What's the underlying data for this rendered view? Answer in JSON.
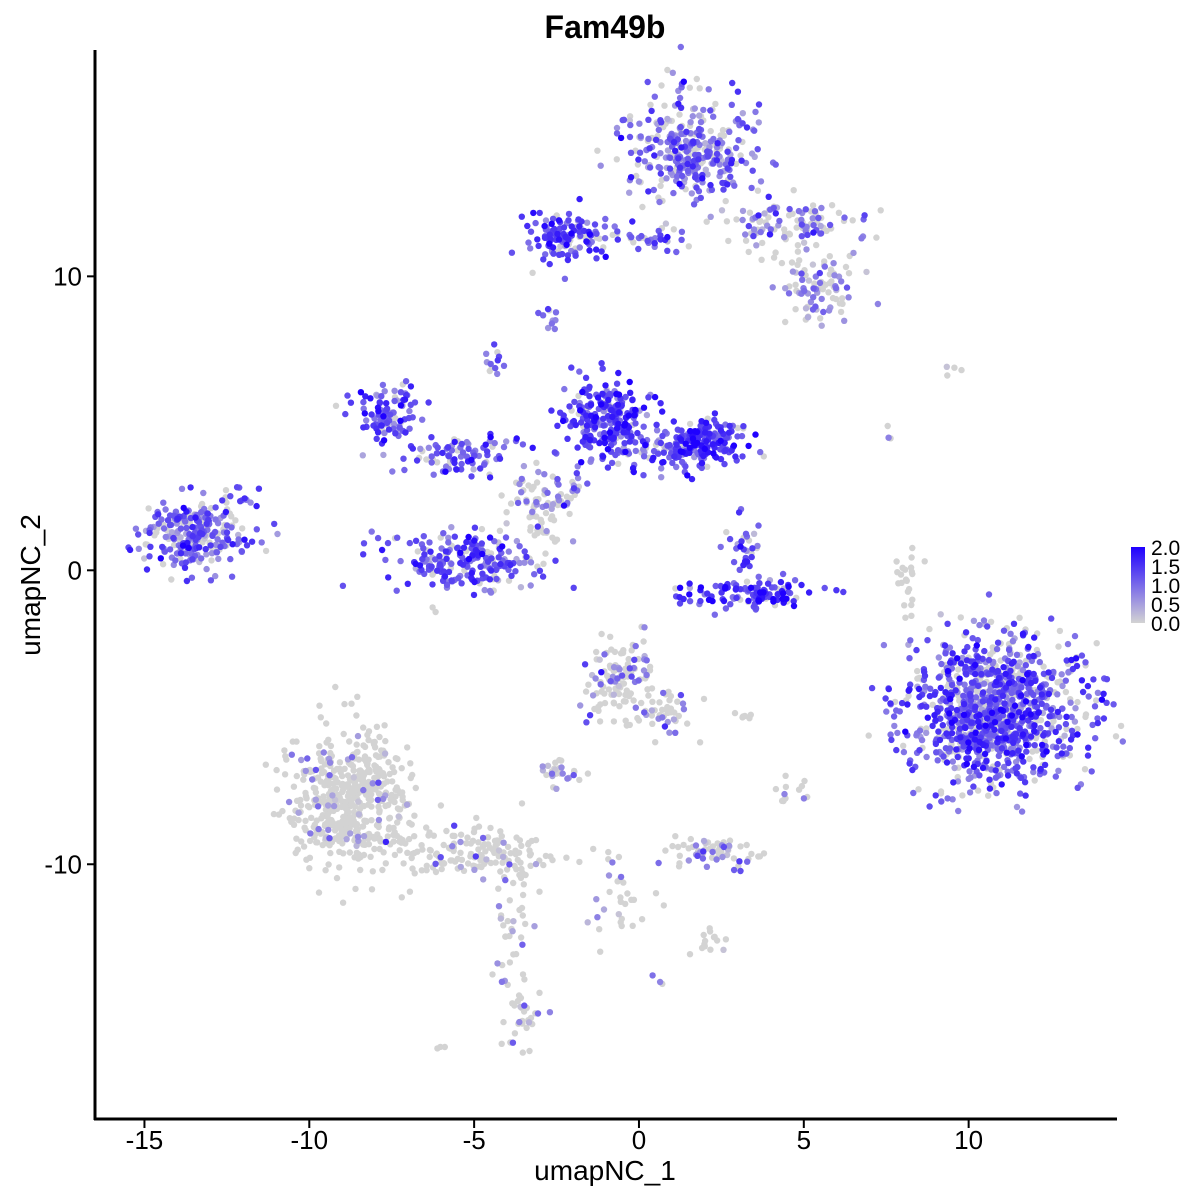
{
  "chart_data": {
    "type": "scatter",
    "title": "Fam49b",
    "xlabel": "umapNC_1",
    "ylabel": "umapNC_2",
    "xlim": [
      -16.5,
      14.5
    ],
    "ylim": [
      -18.7,
      17.7
    ],
    "xticks": [
      -15,
      -10,
      -5,
      0,
      5,
      10
    ],
    "xtick_labels": [
      "-15",
      "-10",
      "-5",
      "0",
      "5",
      "10"
    ],
    "yticks": [
      -10,
      0,
      10
    ],
    "ytick_labels": [
      "-10",
      "0",
      "10"
    ],
    "grid": false,
    "legend": {
      "placement": "right",
      "type": "colorbar",
      "range": [
        0,
        2.0
      ],
      "tick_values": [
        2.0,
        1.5,
        1.0,
        0.5,
        0.0
      ],
      "tick_labels": [
        "2.0",
        "1.5",
        "1.0",
        "0.5",
        "0.0"
      ],
      "low_color": "#d3d3d3",
      "high_color": "#1f00ff"
    },
    "clusters": [
      {
        "cx": -13.5,
        "cy": 1.2,
        "sx": 0.75,
        "sy": 0.6,
        "n": 260,
        "expr_prob": 0.75,
        "expr_mean": 1.1
      },
      {
        "cx": -12.0,
        "cy": 2.3,
        "sx": 0.3,
        "sy": 0.3,
        "n": 12,
        "expr_prob": 0.9,
        "expr_mean": 1.0
      },
      {
        "cx": 1.5,
        "cy": 14.3,
        "sx": 0.95,
        "sy": 0.9,
        "n": 340,
        "expr_prob": 0.7,
        "expr_mean": 1.0
      },
      {
        "cx": 4.5,
        "cy": 11.8,
        "sx": 1.1,
        "sy": 0.5,
        "n": 110,
        "expr_prob": 0.55,
        "expr_mean": 0.9
      },
      {
        "cx": 5.5,
        "cy": 9.5,
        "sx": 0.6,
        "sy": 0.6,
        "n": 90,
        "expr_prob": 0.55,
        "expr_mean": 0.8
      },
      {
        "cx": -2.2,
        "cy": 11.3,
        "sx": 0.6,
        "sy": 0.4,
        "n": 120,
        "expr_prob": 0.85,
        "expr_mean": 1.3
      },
      {
        "cx": -0.2,
        "cy": 11.3,
        "sx": 1.2,
        "sy": 0.18,
        "n": 45,
        "expr_prob": 0.8,
        "expr_mean": 1.1
      },
      {
        "cx": -2.7,
        "cy": 8.6,
        "sx": 0.2,
        "sy": 0.2,
        "n": 10,
        "expr_prob": 0.9,
        "expr_mean": 1.0
      },
      {
        "cx": -4.4,
        "cy": 7.2,
        "sx": 0.2,
        "sy": 0.3,
        "n": 12,
        "expr_prob": 0.6,
        "expr_mean": 0.9
      },
      {
        "cx": -1.0,
        "cy": 5.3,
        "sx": 0.6,
        "sy": 0.6,
        "n": 220,
        "expr_prob": 0.92,
        "expr_mean": 1.4
      },
      {
        "cx": 1.9,
        "cy": 4.4,
        "sx": 0.6,
        "sy": 0.4,
        "n": 180,
        "expr_prob": 0.9,
        "expr_mean": 1.4
      },
      {
        "cx": 0.0,
        "cy": 4.0,
        "sx": 1.2,
        "sy": 0.3,
        "n": 90,
        "expr_prob": 0.85,
        "expr_mean": 1.2
      },
      {
        "cx": -7.6,
        "cy": 5.3,
        "sx": 0.5,
        "sy": 0.5,
        "n": 100,
        "expr_prob": 0.85,
        "expr_mean": 1.2
      },
      {
        "cx": -5.4,
        "cy": 3.9,
        "sx": 0.9,
        "sy": 0.35,
        "n": 90,
        "expr_prob": 0.85,
        "expr_mean": 1.2
      },
      {
        "cx": -2.6,
        "cy": 2.6,
        "sx": 0.6,
        "sy": 0.5,
        "n": 60,
        "expr_prob": 0.6,
        "expr_mean": 1.0
      },
      {
        "cx": -5.3,
        "cy": 0.3,
        "sx": 1.1,
        "sy": 0.5,
        "n": 220,
        "expr_prob": 0.85,
        "expr_mean": 1.2
      },
      {
        "cx": 3.3,
        "cy": -0.8,
        "sx": 1.1,
        "sy": 0.25,
        "n": 120,
        "expr_prob": 0.9,
        "expr_mean": 1.5
      },
      {
        "cx": 3.2,
        "cy": 0.8,
        "sx": 0.3,
        "sy": 0.5,
        "n": 30,
        "expr_prob": 0.85,
        "expr_mean": 1.2
      },
      {
        "cx": 10.8,
        "cy": -4.8,
        "sx": 1.3,
        "sy": 1.2,
        "n": 1100,
        "expr_prob": 0.75,
        "expr_mean": 1.2
      },
      {
        "cx": 8.1,
        "cy": -0.3,
        "sx": 0.15,
        "sy": 0.8,
        "n": 22,
        "expr_prob": 0.05,
        "expr_mean": 0.4
      },
      {
        "cx": -0.6,
        "cy": -3.8,
        "sx": 0.6,
        "sy": 0.6,
        "n": 130,
        "expr_prob": 0.3,
        "expr_mean": 0.8
      },
      {
        "cx": 0.9,
        "cy": -4.8,
        "sx": 0.5,
        "sy": 0.4,
        "n": 40,
        "expr_prob": 0.3,
        "expr_mean": 0.8
      },
      {
        "cx": -8.8,
        "cy": -7.8,
        "sx": 0.9,
        "sy": 1.2,
        "n": 520,
        "expr_prob": 0.08,
        "expr_mean": 0.7
      },
      {
        "cx": -5.3,
        "cy": -9.6,
        "sx": 1.2,
        "sy": 0.5,
        "n": 150,
        "expr_prob": 0.08,
        "expr_mean": 0.6
      },
      {
        "cx": -3.8,
        "cy": -12.0,
        "sx": 0.25,
        "sy": 1.5,
        "n": 45,
        "expr_prob": 0.15,
        "expr_mean": 0.6
      },
      {
        "cx": -3.6,
        "cy": -15.0,
        "sx": 0.3,
        "sy": 0.6,
        "n": 30,
        "expr_prob": 0.35,
        "expr_mean": 0.8
      },
      {
        "cx": -2.4,
        "cy": -6.8,
        "sx": 0.35,
        "sy": 0.25,
        "n": 30,
        "expr_prob": 0.35,
        "expr_mean": 0.7
      },
      {
        "cx": 2.2,
        "cy": -9.6,
        "sx": 0.7,
        "sy": 0.25,
        "n": 70,
        "expr_prob": 0.4,
        "expr_mean": 0.7
      },
      {
        "cx": 2.3,
        "cy": -12.6,
        "sx": 0.3,
        "sy": 0.2,
        "n": 14,
        "expr_prob": 0.1,
        "expr_mean": 0.5
      },
      {
        "cx": -0.5,
        "cy": -11.0,
        "sx": 0.5,
        "sy": 0.9,
        "n": 30,
        "expr_prob": 0.15,
        "expr_mean": 0.6
      },
      {
        "cx": 4.4,
        "cy": -7.9,
        "sx": 0.15,
        "sy": 0.35,
        "n": 8,
        "expr_prob": 0.2,
        "expr_mean": 0.6
      },
      {
        "cx": 5.0,
        "cy": -7.6,
        "sx": 0.1,
        "sy": 0.3,
        "n": 6,
        "expr_prob": 0.4,
        "expr_mean": 0.7
      },
      {
        "cx": 3.0,
        "cy": -4.9,
        "sx": 0.35,
        "sy": 0.1,
        "n": 6,
        "expr_prob": 0.3,
        "expr_mean": 0.6
      },
      {
        "cx": 9.5,
        "cy": 6.7,
        "sx": 0.15,
        "sy": 0.1,
        "n": 4,
        "expr_prob": 0.3,
        "expr_mean": 0.6
      },
      {
        "cx": 7.6,
        "cy": 4.8,
        "sx": 0.15,
        "sy": 0.25,
        "n": 3,
        "expr_prob": 0.8,
        "expr_mean": 1.0
      },
      {
        "cx": -6.0,
        "cy": -16.2,
        "sx": 0.1,
        "sy": 0.1,
        "n": 3,
        "expr_prob": 0.3,
        "expr_mean": 0.6
      },
      {
        "cx": 0.6,
        "cy": -14.0,
        "sx": 0.1,
        "sy": 0.1,
        "n": 3,
        "expr_prob": 0.5,
        "expr_mean": 0.8
      },
      {
        "cx": -11.0,
        "cy": 1.4,
        "sx": 0.1,
        "sy": 0.1,
        "n": 2,
        "expr_prob": 1.0,
        "expr_mean": 1.2
      },
      {
        "cx": -3.0,
        "cy": 1.8,
        "sx": 0.6,
        "sy": 0.6,
        "n": 40,
        "expr_prob": 0.2,
        "expr_mean": 0.6
      }
    ]
  }
}
